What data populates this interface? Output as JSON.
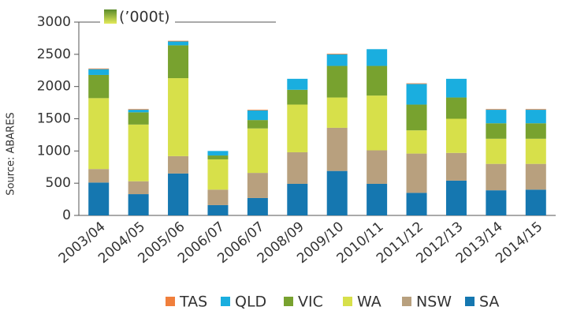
{
  "chart_data": {
    "type": "stacked_bar",
    "unit_label": "(’000t)",
    "source": "Source: ABARES",
    "categories": [
      "2003/04",
      "2004/05",
      "2005/06",
      "2006/07",
      "2006/07",
      "2008/09",
      "2009/10",
      "2010/11",
      "2011/12",
      "2012/13",
      "2013/14",
      "2014/15"
    ],
    "series": [
      {
        "name": "SA",
        "color": "#1577b0",
        "values": [
          510,
          330,
          650,
          160,
          270,
          490,
          690,
          490,
          350,
          540,
          390,
          400
        ]
      },
      {
        "name": "NSW",
        "color": "#b8a07e",
        "values": [
          210,
          200,
          270,
          240,
          390,
          490,
          670,
          520,
          610,
          430,
          410,
          400
        ]
      },
      {
        "name": "WA",
        "color": "#d7e04a",
        "values": [
          1100,
          880,
          1210,
          470,
          690,
          740,
          470,
          850,
          360,
          530,
          390,
          390
        ]
      },
      {
        "name": "VIC",
        "color": "#78a22f",
        "values": [
          360,
          190,
          510,
          60,
          130,
          230,
          490,
          460,
          400,
          330,
          240,
          240
        ]
      },
      {
        "name": "QLD",
        "color": "#1aaedf",
        "values": [
          90,
          40,
          60,
          70,
          150,
          170,
          180,
          260,
          320,
          290,
          210,
          210
        ]
      },
      {
        "name": "TAS",
        "color": "#f07f3c",
        "values": [
          10,
          10,
          10,
          0,
          10,
          0,
          10,
          0,
          10,
          0,
          10,
          10
        ]
      }
    ],
    "ylim": [
      0,
      3000
    ],
    "yticks": [
      0,
      500,
      1000,
      1500,
      2000,
      2500,
      3000
    ]
  }
}
